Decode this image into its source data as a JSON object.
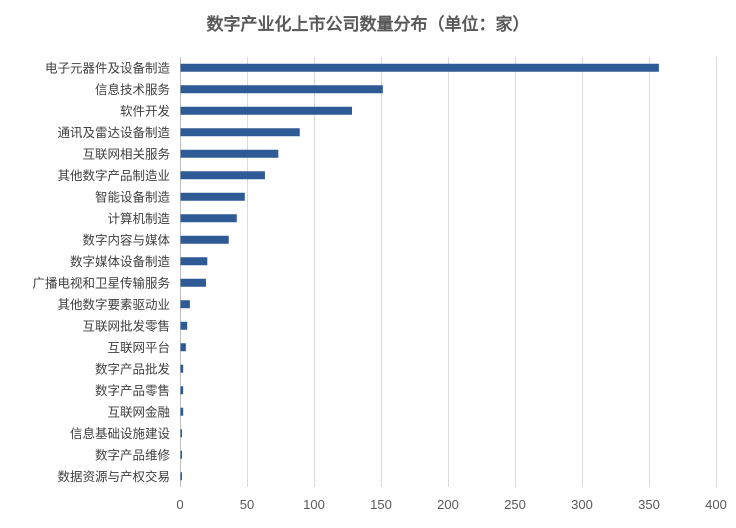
{
  "chart_data": {
    "type": "bar",
    "orientation": "horizontal",
    "title": "数字产业化上市公司数量分布（单位：家）",
    "categories": [
      "电子元器件及设备制造",
      "信息技术服务",
      "软件开发",
      "通讯及雷达设备制造",
      "互联网相关服务",
      "其他数字产品制造业",
      "智能设备制造",
      "计算机制造",
      "数字内容与媒体",
      "数字媒体设备制造",
      "广播电视和卫星传输服务",
      "其他数字要素驱动业",
      "互联网批发零售",
      "互联网平台",
      "数字产品批发",
      "数字产品零售",
      "互联网金融",
      "信息基础设施建设",
      "数字产品维修",
      "数据资源与产权交易"
    ],
    "values": [
      357,
      151,
      128,
      89,
      73,
      63,
      48,
      42,
      36,
      20,
      19,
      7,
      5,
      4,
      2,
      2,
      2,
      1,
      1,
      1
    ],
    "xlim": [
      0,
      400
    ],
    "xticks": [
      0,
      50,
      100,
      150,
      200,
      250,
      300,
      350,
      400
    ],
    "grid": true,
    "legend": "none",
    "bar_color": "#2e5a96"
  }
}
